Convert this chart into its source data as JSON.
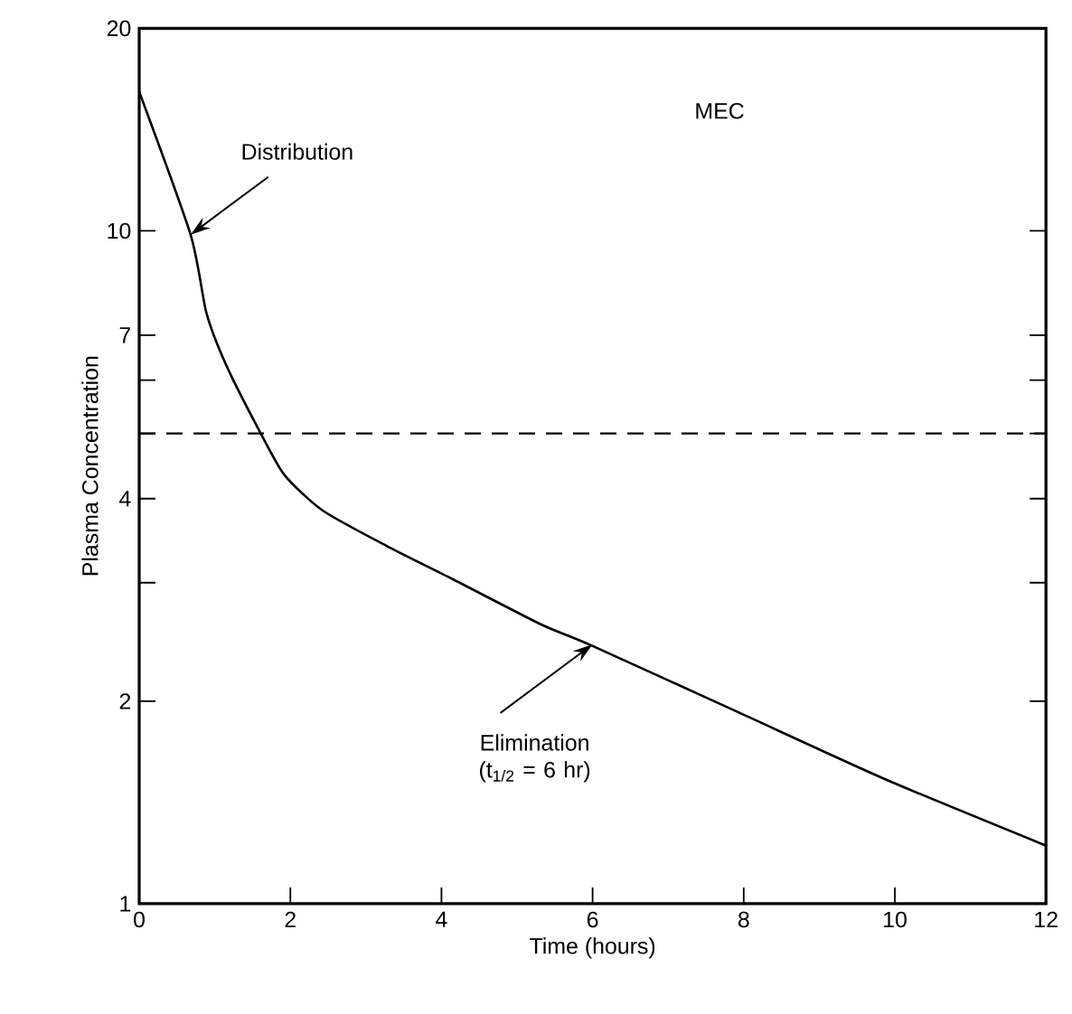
{
  "chart_data": {
    "type": "line",
    "xlabel": "Time (hours)",
    "ylabel": "Plasma Concentration",
    "log": "y",
    "x": [
      0,
      0.68,
      0.89,
      1.15,
      1.58,
      1.92,
      2.43,
      3.28,
      4.14,
      5.32,
      5.95,
      7.91,
      9.88,
      12
    ],
    "series": [
      {
        "color": "#000000",
        "values": [
          16.1,
          9.87,
          7.55,
          6.32,
          5.07,
          4.34,
          3.84,
          3.4,
          3.04,
          2.6,
          2.43,
          1.93,
          1.53,
          1.22
        ]
      }
    ],
    "xlim": [
      0,
      12
    ],
    "ylim": [
      1,
      20
    ],
    "xticks": [
      0,
      2,
      4,
      6,
      8,
      10,
      12
    ],
    "yticks": [
      1,
      2,
      {
        "value": 3,
        "label": null
      },
      4,
      {
        "value": 5,
        "label": null
      },
      {
        "value": 6,
        "label": null
      },
      7,
      10,
      20
    ],
    "ref_lines": [
      {
        "axis": "y",
        "value": 5,
        "label": "MEC",
        "line_style": "dashed",
        "color": "#000000"
      }
    ],
    "annotations": [
      {
        "text": "Distribution",
        "x": 0.68,
        "y": 9.87
      },
      {
        "text": "Elimination (t$_{1/2}$ = 6 hr)",
        "x": 6,
        "y": 2.43
      }
    ]
  }
}
